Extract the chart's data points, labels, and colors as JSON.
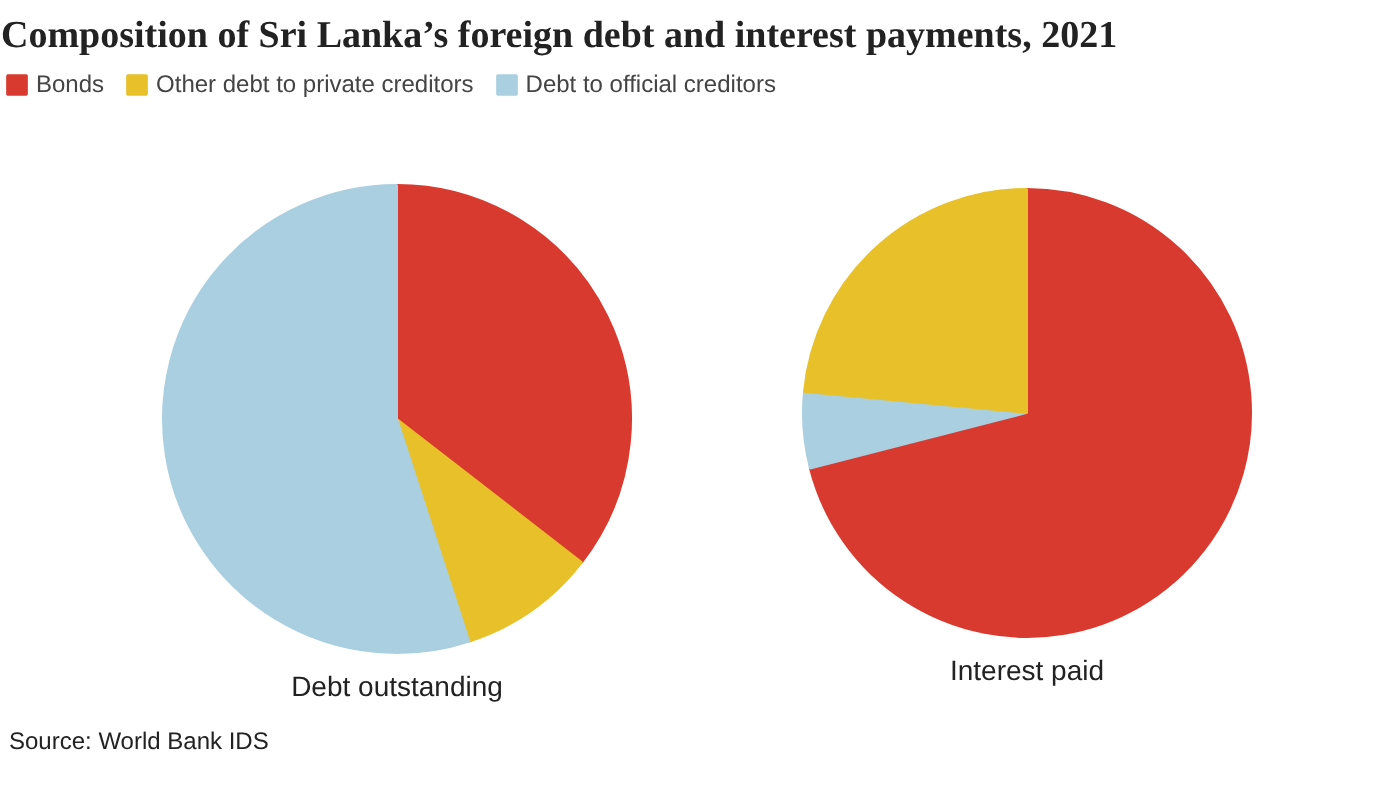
{
  "chart_data": [
    {
      "type": "pie",
      "title": "Composition of Sri Lanka’s foreign debt and interest payments, 2021",
      "xlabel": "Debt outstanding",
      "categories": [
        "Bonds",
        "Other debt to private creditors",
        "Debt to official creditors"
      ],
      "values": [
        35.5,
        9.5,
        55
      ],
      "colors": [
        "#d93a2f",
        "#e8c12a",
        "#a9cfe0"
      ],
      "legend": "top left",
      "annotations": [
        "Source: World Bank IDS"
      ]
    },
    {
      "type": "pie",
      "xlabel": "Interest paid",
      "categories": [
        null,
        null,
        null
      ],
      "values": [
        71,
        5.5,
        23.5
      ],
      "colors": [
        "#d93a2f",
        "#a9cfe0",
        "#e8c12a"
      ]
    }
  ]
}
